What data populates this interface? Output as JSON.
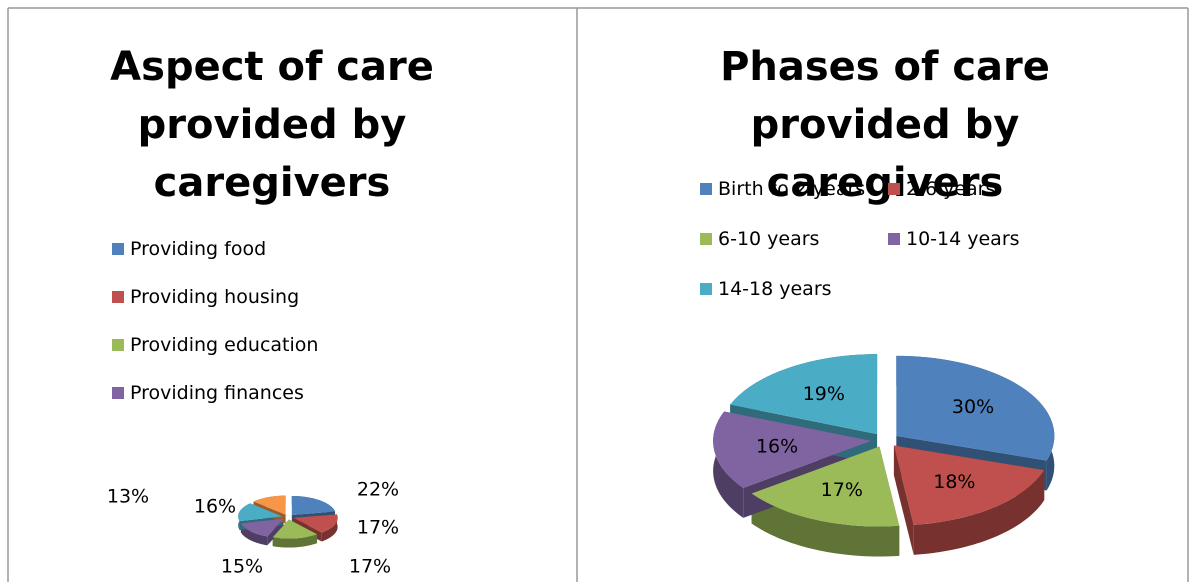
{
  "chart_data": [
    {
      "type": "pie",
      "title": "Aspect of care provided by caregivers",
      "categories": [
        "Providing food",
        "Providing housing",
        "Providing education",
        "Providing finances",
        null,
        null
      ],
      "values": [
        22,
        17,
        17,
        15,
        16,
        13
      ],
      "value_labels": [
        "22%",
        "17%",
        "17%",
        "15%",
        "16%",
        "13%"
      ],
      "colors": [
        "#4f81bd",
        "#c0504d",
        "#9bbb59",
        "#8064a2",
        "#4bacc6",
        "#f79646"
      ],
      "legend": "top",
      "label_position": "outside"
    },
    {
      "type": "pie",
      "title": "Phases of care provided by caregivers",
      "categories": [
        "Birth to 2 years",
        "2-6 years",
        "6-10 years",
        "10-14 years",
        "14-18 years"
      ],
      "values": [
        30,
        18,
        17,
        16,
        19
      ],
      "value_labels": [
        "30%",
        "18%",
        "17%",
        "16%",
        "19%"
      ],
      "colors": [
        "#4f81bd",
        "#c0504d",
        "#9bbb59",
        "#8064a2",
        "#4bacc6"
      ],
      "legend": "top",
      "label_position": "inside"
    }
  ]
}
